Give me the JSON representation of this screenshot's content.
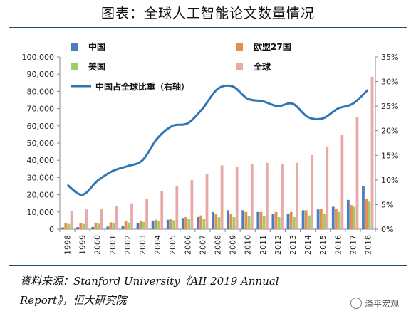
{
  "header": {
    "title": "图表：全球人工智能论文数量情况"
  },
  "source": {
    "line1": "资料来源：Stanford University《AII 2019 Annual",
    "line2": "Report》，恒大研究院"
  },
  "watermark": {
    "text": "泽平宏观"
  },
  "colors": {
    "china": "#4a7ec2",
    "eu27": "#e8904a",
    "usa": "#9bce68",
    "global": "#e8aaa6",
    "share_line": "#2e75b6",
    "axis": "#888888"
  },
  "chart_data": {
    "type": "bar",
    "title": "",
    "categories": [
      "1998",
      "1999",
      "2000",
      "2001",
      "2002",
      "2003",
      "2004",
      "2005",
      "2006",
      "2007",
      "2008",
      "2009",
      "2010",
      "2011",
      "2012",
      "2013",
      "2014",
      "2015",
      "2016",
      "2017",
      "2018"
    ],
    "ylim": [
      0,
      100000
    ],
    "yticks": [
      "0",
      "10,000",
      "20,000",
      "30,000",
      "40,000",
      "50,000",
      "60,000",
      "70,000",
      "80,000",
      "90,000",
      "100,000"
    ],
    "y2lim": [
      0,
      35
    ],
    "y2ticks": [
      "0%",
      "5%",
      "10%",
      "15%",
      "20%",
      "25%",
      "30%",
      "35%"
    ],
    "series": [
      {
        "name": "中国",
        "color_key": "china",
        "values": [
          1000,
          1200,
          1300,
          1500,
          2000,
          3500,
          5000,
          5500,
          6500,
          7000,
          10000,
          11000,
          11000,
          10000,
          9000,
          9000,
          11000,
          11500,
          13000,
          17000,
          25000
        ]
      },
      {
        "name": "欧盟27国",
        "color_key": "eu27",
        "values": [
          3500,
          3500,
          3800,
          4000,
          4500,
          5000,
          5500,
          6000,
          7000,
          8000,
          9000,
          9000,
          10000,
          10000,
          10000,
          10000,
          11000,
          12000,
          12000,
          14000,
          17500
        ]
      },
      {
        "name": "美国",
        "color_key": "usa",
        "values": [
          3000,
          3000,
          3200,
          3500,
          3800,
          4200,
          4800,
          5200,
          5800,
          6200,
          7000,
          7000,
          7500,
          7500,
          7000,
          7000,
          8000,
          9000,
          10000,
          13000,
          16000
        ]
      },
      {
        "name": "全球",
        "color_key": "global",
        "values": [
          10500,
          11500,
          12000,
          13500,
          15000,
          17500,
          22000,
          25000,
          28500,
          32000,
          37000,
          36000,
          38000,
          38500,
          38000,
          38500,
          43000,
          48000,
          55000,
          65000,
          88500
        ]
      }
    ],
    "line_series": {
      "name": "中国占全球比重（右轴）",
      "axis": "right",
      "values": [
        9.0,
        7.0,
        9.8,
        11.8,
        12.8,
        14.0,
        18.5,
        21.0,
        21.5,
        24.5,
        28.5,
        29.0,
        26.5,
        26.0,
        25.0,
        25.5,
        22.8,
        22.5,
        24.5,
        25.5,
        28.3
      ]
    },
    "legend": [
      "中国",
      "欧盟27国",
      "美国",
      "全球",
      "中国占全球比重（右轴）"
    ],
    "grid": false
  }
}
